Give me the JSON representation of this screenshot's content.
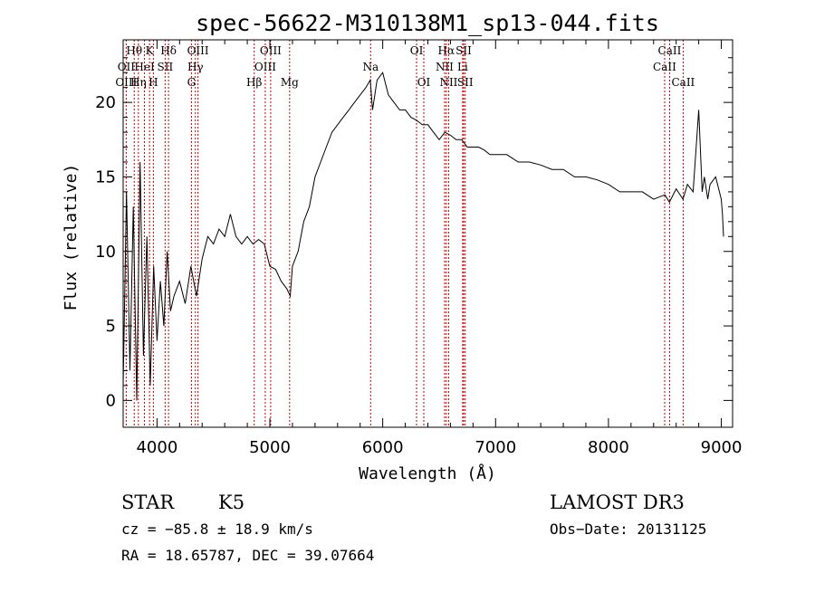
{
  "chart_data": {
    "type": "line",
    "title": "spec-56622-M310138M1_sp13-044.fits",
    "xlabel": "Wavelength (Å)",
    "ylabel": "Flux (relative)",
    "xlim": [
      3700,
      9100
    ],
    "ylim": [
      -1.8,
      24.2
    ],
    "xticks": [
      4000,
      5000,
      6000,
      7000,
      8000,
      9000
    ],
    "yticks": [
      0,
      5,
      10,
      15,
      20
    ],
    "grid": false,
    "series": [
      {
        "name": "flux",
        "x": [
          3700,
          3730,
          3760,
          3790,
          3820,
          3850,
          3880,
          3910,
          3940,
          3970,
          4000,
          4030,
          4060,
          4090,
          4120,
          4150,
          4200,
          4250,
          4300,
          4350,
          4400,
          4450,
          4500,
          4550,
          4600,
          4650,
          4700,
          4750,
          4800,
          4850,
          4900,
          4950,
          5000,
          5050,
          5100,
          5150,
          5180,
          5200,
          5250,
          5300,
          5350,
          5400,
          5450,
          5500,
          5550,
          5600,
          5650,
          5700,
          5750,
          5800,
          5850,
          5890,
          5910,
          5950,
          6000,
          6050,
          6100,
          6150,
          6200,
          6250,
          6300,
          6350,
          6400,
          6450,
          6500,
          6550,
          6600,
          6650,
          6700,
          6750,
          6800,
          6850,
          6900,
          6950,
          7000,
          7100,
          7200,
          7300,
          7400,
          7500,
          7600,
          7700,
          7800,
          7900,
          8000,
          8100,
          8200,
          8300,
          8400,
          8500,
          8540,
          8600,
          8660,
          8700,
          8750,
          8800,
          8830,
          8850,
          8880,
          8900,
          8950,
          9000,
          9010,
          9020
        ],
        "y": [
          1,
          14,
          2,
          13,
          0,
          16,
          3,
          11,
          1,
          9,
          4,
          8,
          5,
          10,
          6,
          7,
          8,
          6.5,
          9,
          7,
          9.5,
          11,
          10.5,
          11.5,
          11,
          12.5,
          11,
          10.5,
          11,
          10.5,
          10.8,
          10.5,
          9,
          8.8,
          8,
          7.5,
          7,
          9,
          10,
          12,
          13,
          15,
          16,
          17,
          18,
          18.5,
          19,
          19.5,
          20,
          20.5,
          21,
          21.5,
          19.5,
          21.5,
          22,
          20.5,
          20,
          19.5,
          19.5,
          19,
          18.8,
          18.5,
          18.5,
          18,
          17.5,
          18,
          17.8,
          17.5,
          17.5,
          17,
          17,
          17,
          16.8,
          16.5,
          16.5,
          16.5,
          16,
          16,
          15.8,
          15.5,
          15.5,
          15,
          15,
          14.8,
          14.5,
          14,
          14,
          14,
          13.5,
          13.8,
          13.3,
          14.2,
          13.5,
          14.5,
          14,
          19.5,
          14,
          15,
          13.5,
          14.5,
          15,
          13.5,
          12.5,
          11
        ]
      }
    ],
    "spectral_lines": [
      {
        "label": "H",
        "greek": "θ",
        "wavelength": 3798,
        "row": 0
      },
      {
        "label": "K",
        "greek": "",
        "wavelength": 3934,
        "row": 0
      },
      {
        "label": "H",
        "greek": "δ",
        "wavelength": 4102,
        "row": 0
      },
      {
        "label": "OIII",
        "greek": "",
        "wavelength": 4363,
        "row": 0
      },
      {
        "label": "OIII",
        "greek": "",
        "wavelength": 5007,
        "row": 0
      },
      {
        "label": "OI",
        "greek": "",
        "wavelength": 6300,
        "row": 0
      },
      {
        "label": "H",
        "greek": "α",
        "wavelength": 6563,
        "row": 0
      },
      {
        "label": "SII",
        "greek": "",
        "wavelength": 6717,
        "row": 0
      },
      {
        "label": "CaII",
        "greek": "",
        "wavelength": 8542,
        "row": 0
      },
      {
        "label": "OII",
        "greek": "",
        "wavelength": 3727,
        "row": 1
      },
      {
        "label": "HeI",
        "greek": "",
        "wavelength": 3889,
        "row": 1
      },
      {
        "label": "SII",
        "greek": "",
        "wavelength": 4072,
        "row": 1
      },
      {
        "label": "H",
        "greek": "γ",
        "wavelength": 4340,
        "row": 1
      },
      {
        "label": "OIII",
        "greek": "",
        "wavelength": 4959,
        "row": 1
      },
      {
        "label": "Na",
        "greek": "",
        "wavelength": 5893,
        "row": 1
      },
      {
        "label": "NII",
        "greek": "",
        "wavelength": 6548,
        "row": 1
      },
      {
        "label": "Li",
        "greek": "",
        "wavelength": 6708,
        "row": 1
      },
      {
        "label": "CaII",
        "greek": "",
        "wavelength": 8498,
        "row": 1
      },
      {
        "label": "OIII",
        "greek": "",
        "wavelength": 3727,
        "row": 2
      },
      {
        "label": "H",
        "greek": "η",
        "wavelength": 3835,
        "row": 2
      },
      {
        "label": "H",
        "greek": "",
        "wavelength": 3968,
        "row": 2
      },
      {
        "label": "G",
        "greek": "",
        "wavelength": 4305,
        "row": 2
      },
      {
        "label": "H",
        "greek": "β",
        "wavelength": 4861,
        "row": 2
      },
      {
        "label": "Mg",
        "greek": "",
        "wavelength": 5175,
        "row": 2
      },
      {
        "label": "OI",
        "greek": "",
        "wavelength": 6364,
        "row": 2
      },
      {
        "label": "NII",
        "greek": "",
        "wavelength": 6584,
        "row": 2
      },
      {
        "label": "SII",
        "greek": "",
        "wavelength": 6731,
        "row": 2
      },
      {
        "label": "CaII",
        "greek": "",
        "wavelength": 8662,
        "row": 2
      }
    ]
  },
  "info": {
    "class": "STAR",
    "subclass": "K5",
    "survey": "LAMOST DR3",
    "redshift": "cz = −85.8 ± 18.9 km/s",
    "obs_date": "Obs−Date: 20131125",
    "coords": "RA =  18.65787, DEC =  39.07664"
  },
  "colors": {
    "line_marker": "#cc0000",
    "spectrum": "#000000",
    "axes": "#000000"
  }
}
